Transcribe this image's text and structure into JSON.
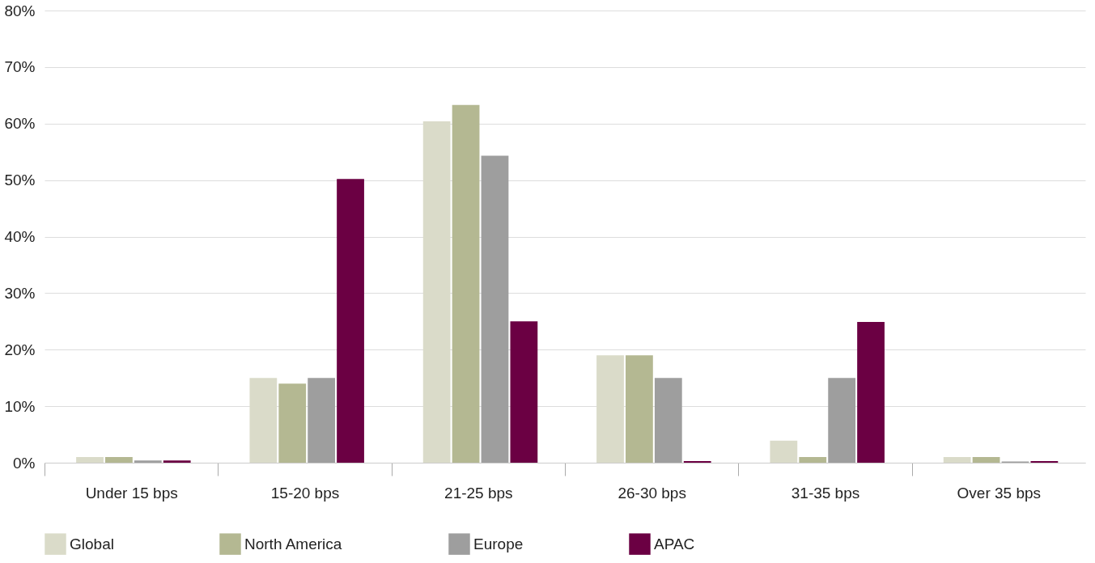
{
  "chart_data": {
    "type": "bar",
    "categories": [
      "Under 15 bps",
      "15-20 bps",
      "21-25 bps",
      "26-30 bps",
      "31-35 bps",
      "Over 35 bps"
    ],
    "series": [
      {
        "name": "Global",
        "color": "#dadbc9",
        "values": [
          1,
          15,
          60.4,
          19,
          3.9,
          1
        ]
      },
      {
        "name": "North America",
        "color": "#b4b892",
        "values": [
          1,
          14,
          63.3,
          19,
          1,
          1
        ]
      },
      {
        "name": "Europe",
        "color": "#9e9e9e",
        "values": [
          0.4,
          15,
          54.3,
          15,
          15,
          0.2
        ]
      },
      {
        "name": "APAC",
        "color": "#6b0043",
        "values": [
          0.4,
          50.2,
          25,
          0.3,
          24.9,
          0.3
        ]
      }
    ],
    "ylim": [
      0,
      80
    ],
    "yticks": [
      {
        "value": 0,
        "label": "0%"
      },
      {
        "value": 10,
        "label": "10%"
      },
      {
        "value": 20,
        "label": "20%"
      },
      {
        "value": 30,
        "label": "30%"
      },
      {
        "value": 40,
        "label": "40%"
      },
      {
        "value": 50,
        "label": "50%"
      },
      {
        "value": 60,
        "label": "60%"
      },
      {
        "value": 70,
        "label": "70%"
      },
      {
        "value": 80,
        "label": "80%"
      }
    ],
    "grid": "y",
    "legend": "bottom"
  }
}
